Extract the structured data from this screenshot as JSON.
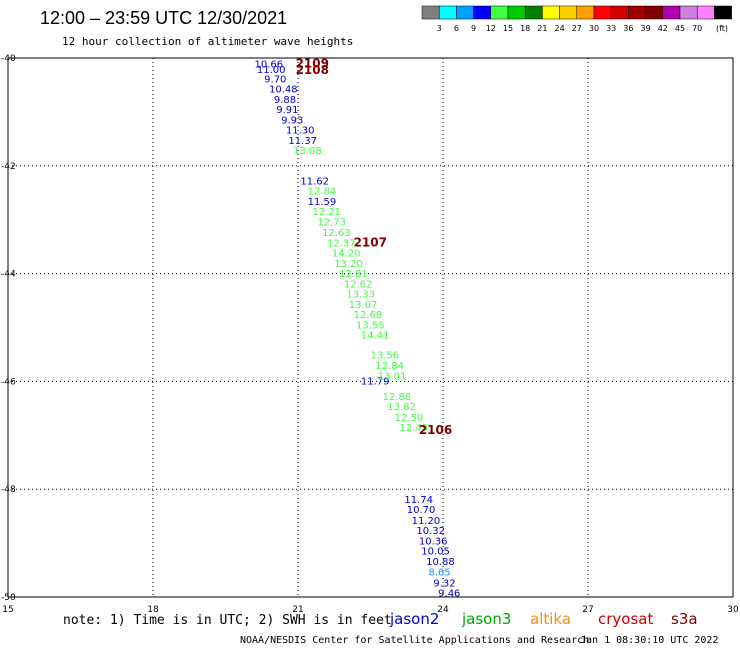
{
  "header": {
    "title": "12:00 – 23:59 UTC 12/30/2021",
    "subtitle": "12 hour collection of altimeter wave heights"
  },
  "color_scale": {
    "labels": [
      "3",
      "6",
      "9",
      "12",
      "15",
      "18",
      "21",
      "24",
      "27",
      "30",
      "33",
      "36",
      "39",
      "42",
      "45",
      "70"
    ],
    "unit": "(ft)",
    "colors": [
      "#808080",
      "#00ffff",
      "#00a0ff",
      "#0000ff",
      "#40ff40",
      "#00cc00",
      "#008000",
      "#ffff00",
      "#ffd000",
      "#ffa000",
      "#ff0000",
      "#d00000",
      "#a00000",
      "#800000",
      "#b000b0",
      "#d080e0",
      "#ff80ff",
      "#000000"
    ]
  },
  "footer": {
    "note": "note:  1) Time is in UTC;  2) SWH is in feet",
    "credit": "NOAA/NESDIS Center for Satellite Applications and Research",
    "timestamp": "Jan  1 08:30:10 UTC 2022"
  },
  "legend": [
    {
      "name": "jason2",
      "color": "#0000cc"
    },
    {
      "name": "jason3",
      "color": "#00aa00"
    },
    {
      "name": "altika",
      "color": "#ff8c00"
    },
    {
      "name": "cryosat",
      "color": "#cc0000"
    },
    {
      "name": "s3a",
      "color": "#800000"
    }
  ],
  "chart_data": {
    "type": "scatter",
    "title": "12:00 – 23:59 UTC 12/30/2021",
    "subtitle": "12 hour collection of altimeter wave heights",
    "x_ticks": [
      15,
      18,
      21,
      24,
      27,
      30
    ],
    "y_ticks": [
      -40,
      -42,
      -44,
      -46,
      -48,
      -50
    ],
    "xlim": [
      15,
      30
    ],
    "ylim": [
      -50,
      -40
    ],
    "grid": true,
    "series": [
      {
        "name": "jason2",
        "color": "#0000cc",
        "points": [
          {
            "lon": 20.1,
            "lat": -40.1,
            "label": "10.66"
          },
          {
            "lon": 20.15,
            "lat": -40.2,
            "label": "11.00"
          },
          {
            "lon": 20.3,
            "lat": -40.38,
            "label": "9.70"
          },
          {
            "lon": 20.4,
            "lat": -40.57,
            "label": "10.48"
          },
          {
            "lon": 20.5,
            "lat": -40.76,
            "label": "9.88"
          },
          {
            "lon": 20.55,
            "lat": -40.95,
            "label": "9.91"
          },
          {
            "lon": 20.65,
            "lat": -41.14,
            "label": "9.93"
          },
          {
            "lon": 20.75,
            "lat": -41.33,
            "label": "11.30"
          },
          {
            "lon": 20.8,
            "lat": -41.52,
            "label": "11.37"
          },
          {
            "lon": 21.05,
            "lat": -42.27,
            "label": "11.62"
          },
          {
            "lon": 21.2,
            "lat": -42.65,
            "label": "11.59"
          },
          {
            "lon": 22.3,
            "lat": -45.98,
            "label": "11.79"
          },
          {
            "lon": 23.2,
            "lat": -48.18,
            "label": "11.74"
          },
          {
            "lon": 23.25,
            "lat": -48.37,
            "label": "10.70"
          },
          {
            "lon": 23.35,
            "lat": -48.57,
            "label": "11.20"
          },
          {
            "lon": 23.45,
            "lat": -48.76,
            "label": "10.32"
          },
          {
            "lon": 23.5,
            "lat": -48.95,
            "label": "10.36"
          },
          {
            "lon": 23.55,
            "lat": -49.14,
            "label": "10.05"
          },
          {
            "lon": 23.65,
            "lat": -49.33,
            "label": "10.88"
          },
          {
            "lon": 23.8,
            "lat": -49.73,
            "label": "9.32"
          },
          {
            "lon": 23.9,
            "lat": -49.92,
            "label": "9.46"
          }
        ]
      },
      {
        "name": "jason3",
        "color": "#40ff40",
        "points": [
          {
            "lon": 20.9,
            "lat": -41.71,
            "label": "13.08"
          },
          {
            "lon": 21.2,
            "lat": -42.46,
            "label": "12.84"
          },
          {
            "lon": 21.3,
            "lat": -42.84,
            "label": "12.21"
          },
          {
            "lon": 21.4,
            "lat": -43.03,
            "label": "12.73"
          },
          {
            "lon": 21.5,
            "lat": -43.23,
            "label": "12.63"
          },
          {
            "lon": 21.6,
            "lat": -43.42,
            "label": "12.37"
          },
          {
            "lon": 21.7,
            "lat": -43.61,
            "label": "14.20"
          },
          {
            "lon": 21.75,
            "lat": -43.8,
            "label": "13.20"
          },
          {
            "lon": 21.85,
            "lat": -43.99,
            "label": "12.81"
          },
          {
            "lon": 21.95,
            "lat": -44.18,
            "label": "12.62"
          },
          {
            "lon": 22.0,
            "lat": -44.37,
            "label": "13.33"
          },
          {
            "lon": 22.05,
            "lat": -44.56,
            "label": "13.07"
          },
          {
            "lon": 22.15,
            "lat": -44.75,
            "label": "12.68"
          },
          {
            "lon": 22.2,
            "lat": -44.94,
            "label": "13.55"
          },
          {
            "lon": 22.3,
            "lat": -45.13,
            "label": "14.41"
          },
          {
            "lon": 22.5,
            "lat": -45.5,
            "label": "13.56"
          },
          {
            "lon": 22.6,
            "lat": -45.7,
            "label": "12.84"
          },
          {
            "lon": 22.65,
            "lat": -45.89,
            "label": "13.01"
          },
          {
            "lon": 22.75,
            "lat": -46.27,
            "label": "12.88"
          },
          {
            "lon": 22.85,
            "lat": -46.46,
            "label": "13.82"
          },
          {
            "lon": 23.0,
            "lat": -46.66,
            "label": "12.50"
          },
          {
            "lon": 23.1,
            "lat": -46.85,
            "label": "12.49"
          }
        ]
      },
      {
        "name": "cyan",
        "color": "#00a0ff",
        "points": [
          {
            "lon": 23.7,
            "lat": -49.53,
            "label": "8.65"
          }
        ]
      },
      {
        "name": "s3a",
        "color": "#800000",
        "points": [
          {
            "lon": 20.95,
            "lat": -40.1,
            "label": "2109"
          },
          {
            "lon": 20.95,
            "lat": -40.22,
            "label": "2108"
          },
          {
            "lon": 22.15,
            "lat": -43.42,
            "label": "2107"
          },
          {
            "lon": 23.5,
            "lat": -46.9,
            "label": "2106"
          }
        ]
      }
    ]
  }
}
